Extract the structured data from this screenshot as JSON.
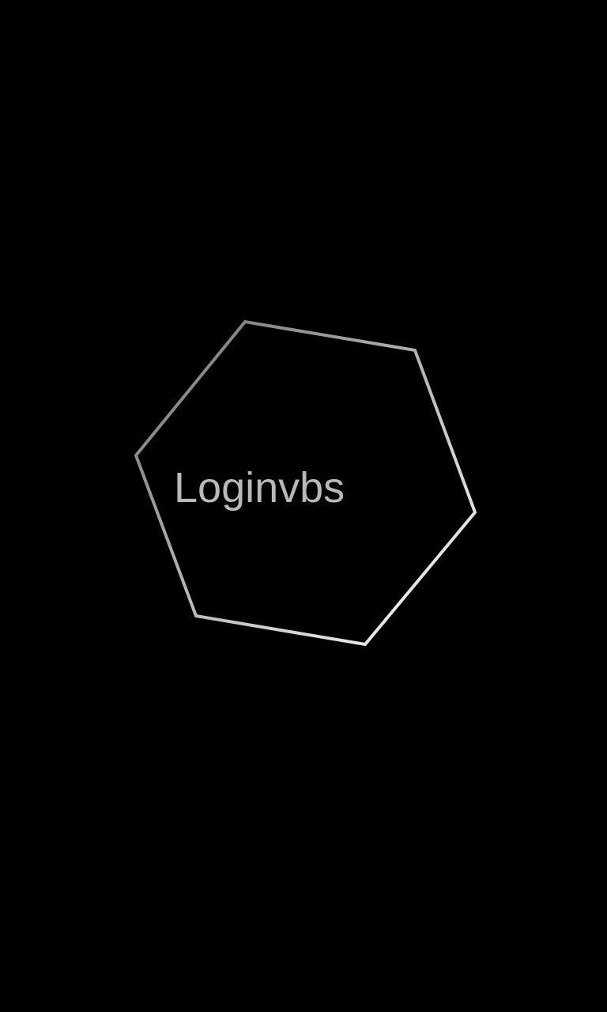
{
  "splash": {
    "app_name": "Loginvbs",
    "logo_icon": "hexagon-outline-icon",
    "background_color": "#000000",
    "text_color": "#b8b8b8",
    "outline_gradient": [
      "#6e6e6e",
      "#ffffff"
    ]
  }
}
